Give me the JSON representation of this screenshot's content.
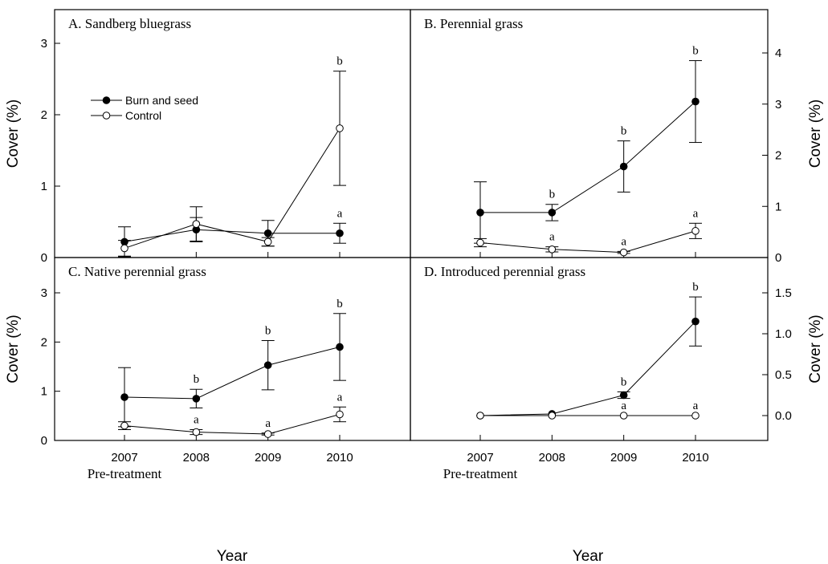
{
  "colors": {
    "line": "#000000",
    "open_marker_fill": "#ffffff",
    "filled_marker": "#000000"
  },
  "legend": [
    {
      "name": "Burn and seed",
      "marker": "filled-circle"
    },
    {
      "name": "Control",
      "marker": "open-circle"
    }
  ],
  "x_axis": {
    "title": "Year",
    "ticks": [
      "2007",
      "2008",
      "2009",
      "2010"
    ],
    "sublabel": "Pre-treatment"
  },
  "chart_data": [
    {
      "type": "line",
      "title": "A. Sandberg bluegrass",
      "ylabel": "Cover (%)",
      "y_axis_side": "left",
      "x": [
        2007,
        2008,
        2009,
        2010
      ],
      "ylim": [
        0,
        3
      ],
      "yticks": [
        0,
        1,
        2,
        3
      ],
      "legend_position": "upper-left",
      "series": [
        {
          "name": "Burn and seed",
          "marker": "filled",
          "values": [
            0.22,
            0.39,
            0.34,
            0.34
          ],
          "err": [
            0.21,
            0.17,
            0.18,
            0.14
          ],
          "sig": [
            "",
            "",
            "",
            "a"
          ]
        },
        {
          "name": "Control",
          "marker": "open",
          "values": [
            0.13,
            0.47,
            0.22,
            1.81
          ],
          "err": [
            0.11,
            0.24,
            0.06,
            0.8
          ],
          "sig": [
            "",
            "",
            "",
            "b"
          ]
        }
      ]
    },
    {
      "type": "line",
      "title": "B. Perennial grass",
      "ylabel": "Cover (%)",
      "y_axis_side": "right",
      "x": [
        2007,
        2008,
        2009,
        2010
      ],
      "ylim": [
        0,
        4.3
      ],
      "yticks": [
        0,
        1,
        2,
        3,
        4
      ],
      "series": [
        {
          "name": "Burn and seed",
          "marker": "filled",
          "values": [
            0.88,
            0.88,
            1.78,
            3.05
          ],
          "err": [
            0.6,
            0.16,
            0.5,
            0.8
          ],
          "sig": [
            "",
            "b",
            "b",
            "b"
          ]
        },
        {
          "name": "Control",
          "marker": "open",
          "values": [
            0.29,
            0.16,
            0.1,
            0.52
          ],
          "err": [
            0.08,
            0.05,
            0.02,
            0.15
          ],
          "sig": [
            "",
            "a",
            "a",
            "a"
          ]
        }
      ]
    },
    {
      "type": "line",
      "title": "C. Native perennial grass",
      "ylabel": "Cover (%)",
      "y_axis_side": "left",
      "x": [
        2007,
        2008,
        2009,
        2010
      ],
      "ylim": [
        0,
        3
      ],
      "yticks": [
        0,
        1,
        2,
        3
      ],
      "series": [
        {
          "name": "Burn and seed",
          "marker": "filled",
          "values": [
            0.88,
            0.85,
            1.53,
            1.9
          ],
          "err": [
            0.6,
            0.19,
            0.5,
            0.68
          ],
          "sig": [
            "",
            "b",
            "b",
            "b"
          ]
        },
        {
          "name": "Control",
          "marker": "open",
          "values": [
            0.3,
            0.17,
            0.13,
            0.53
          ],
          "err": [
            0.08,
            0.05,
            0.02,
            0.15
          ],
          "sig": [
            "",
            "a",
            "a",
            "a"
          ]
        }
      ]
    },
    {
      "type": "line",
      "title": "D. Introduced perennial grass",
      "ylabel": "Cover (%)",
      "y_axis_side": "right",
      "x": [
        2007,
        2008,
        2009,
        2010
      ],
      "ylim": [
        -0.2,
        1.6
      ],
      "yticks": [
        0.0,
        0.5,
        1.0,
        1.5
      ],
      "ytick_labels": [
        "0.0",
        "0.5",
        "1.0",
        "1.5"
      ],
      "series": [
        {
          "name": "Burn and seed",
          "marker": "filled",
          "values": [
            0.0,
            0.02,
            0.25,
            1.15
          ],
          "err": [
            0.0,
            0.0,
            0.04,
            0.3
          ],
          "sig": [
            "",
            "",
            "b",
            "b"
          ]
        },
        {
          "name": "Control",
          "marker": "open",
          "values": [
            0.0,
            0.0,
            0.0,
            0.0
          ],
          "err": [
            0,
            0,
            0,
            0
          ],
          "sig": [
            "",
            "",
            "a",
            "a"
          ]
        }
      ]
    }
  ]
}
